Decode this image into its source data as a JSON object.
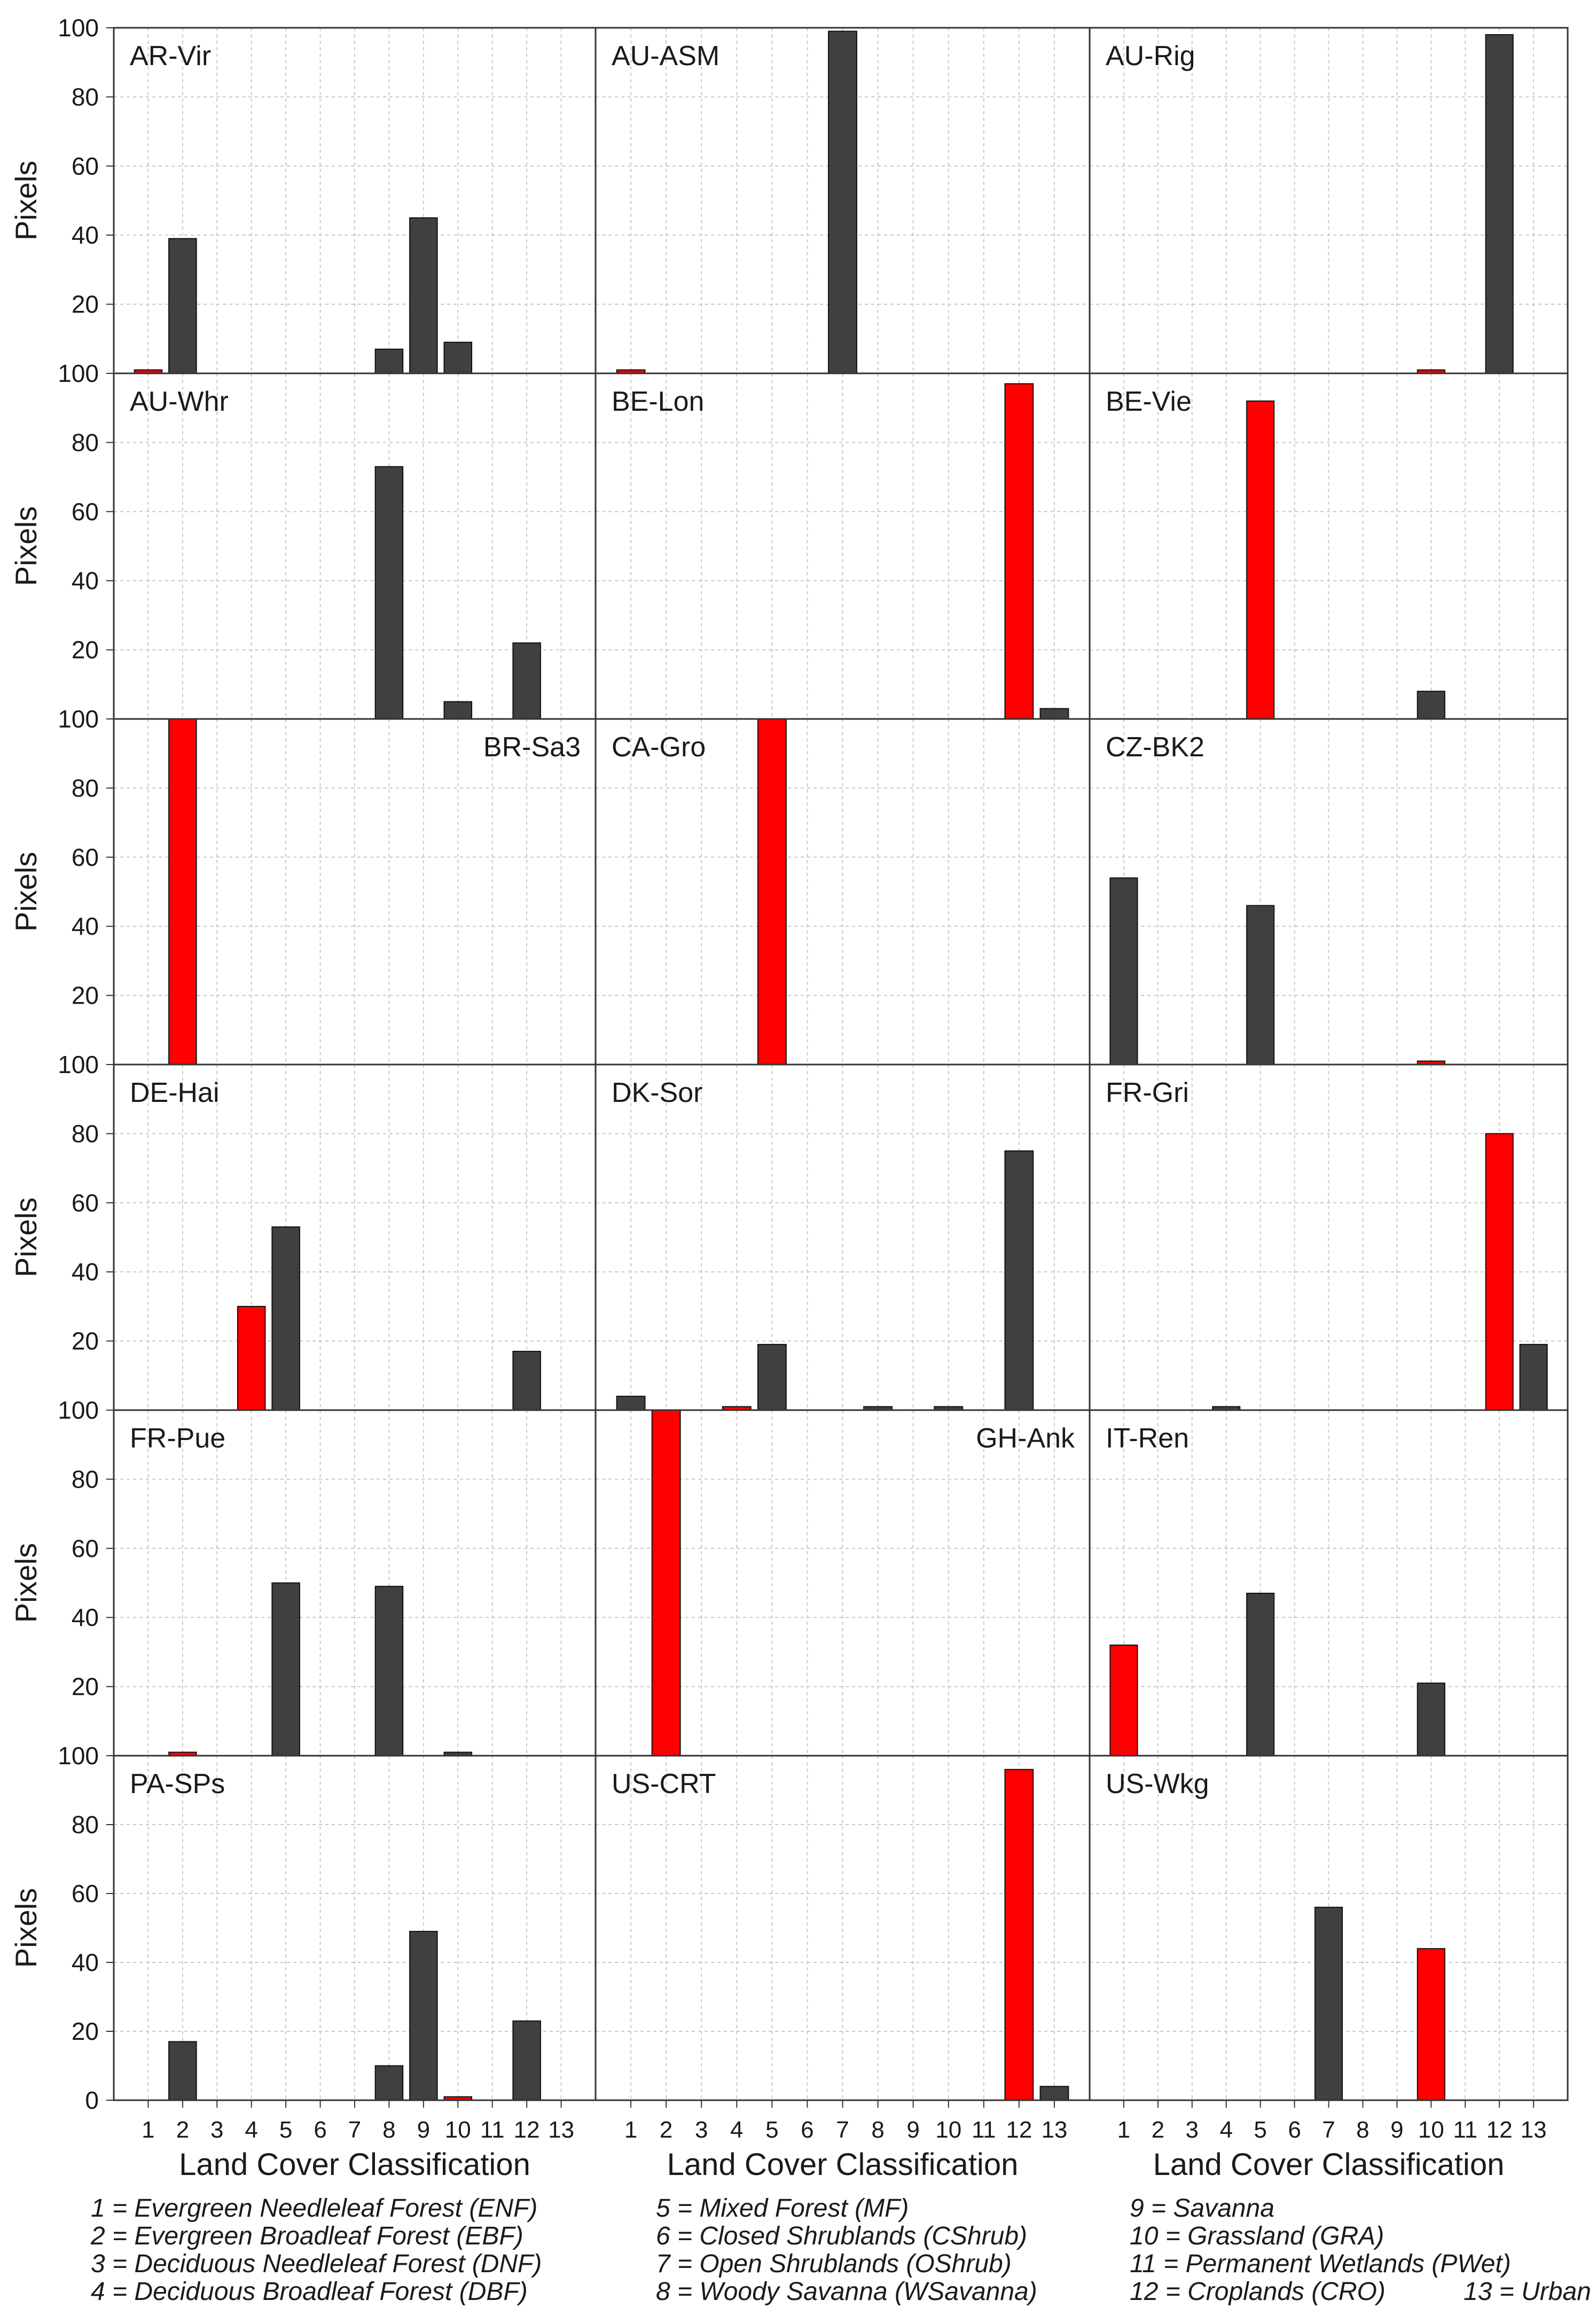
{
  "chart_data": {
    "type": "bar",
    "categories": [
      "1",
      "2",
      "3",
      "4",
      "5",
      "6",
      "7",
      "8",
      "9",
      "10",
      "11",
      "12",
      "13"
    ],
    "ylim": [
      0,
      100
    ],
    "yticks": [
      0,
      20,
      40,
      60,
      80,
      100
    ],
    "ylabel": "Pixels",
    "xlabel": "Land Cover Classification",
    "colors": {
      "dominant": "#ff0000",
      "other": "#404040",
      "grid": "#c8c8c8",
      "frame": "#333333"
    },
    "panels": [
      {
        "site": "AR-Vir",
        "label_pos": "left",
        "values": [
          1,
          39,
          0,
          0,
          0,
          0,
          0,
          7,
          45,
          9,
          0,
          0,
          0
        ],
        "highlight": [
          1
        ]
      },
      {
        "site": "AU-ASM",
        "label_pos": "left",
        "values": [
          1,
          0,
          0,
          0,
          0,
          0,
          99,
          0,
          0,
          0,
          0,
          0,
          0
        ],
        "highlight": [
          1
        ]
      },
      {
        "site": "AU-Rig",
        "label_pos": "left",
        "values": [
          0,
          0,
          0,
          0,
          0,
          0,
          0,
          0,
          0,
          1,
          0,
          98,
          0
        ],
        "highlight": [
          10
        ]
      },
      {
        "site": "AU-Whr",
        "label_pos": "left",
        "values": [
          0,
          0,
          0,
          0,
          0,
          0,
          0,
          73,
          0,
          5,
          0,
          22,
          0
        ],
        "highlight": []
      },
      {
        "site": "BE-Lon",
        "label_pos": "left",
        "values": [
          0,
          0,
          0,
          0,
          0,
          0,
          0,
          0,
          0,
          0,
          0,
          97,
          3
        ],
        "highlight": [
          12
        ]
      },
      {
        "site": "BE-Vie",
        "label_pos": "left",
        "values": [
          0,
          0,
          0,
          0,
          92,
          0,
          0,
          0,
          0,
          8,
          0,
          0,
          0
        ],
        "highlight": [
          5
        ]
      },
      {
        "site": "BR-Sa3",
        "label_pos": "right",
        "values": [
          0,
          101,
          0,
          0,
          0,
          0,
          0,
          0,
          0,
          0,
          0,
          0,
          0
        ],
        "highlight": [
          2
        ]
      },
      {
        "site": "CA-Gro",
        "label_pos": "left",
        "values": [
          0,
          0,
          0,
          0,
          100,
          0,
          0,
          0,
          0,
          0,
          0,
          0,
          0
        ],
        "highlight": [
          5
        ]
      },
      {
        "site": "CZ-BK2",
        "label_pos": "left",
        "values": [
          54,
          0,
          0,
          0,
          46,
          0,
          0,
          0,
          0,
          1,
          0,
          0,
          0
        ],
        "highlight": [
          10
        ]
      },
      {
        "site": "DE-Hai",
        "label_pos": "left",
        "values": [
          0,
          0,
          0,
          30,
          53,
          0,
          0,
          0,
          0,
          0,
          0,
          17,
          0
        ],
        "highlight": [
          4
        ]
      },
      {
        "site": "DK-Sor",
        "label_pos": "left",
        "values": [
          4,
          0,
          0,
          1,
          19,
          0,
          0,
          1,
          0,
          1,
          0,
          75,
          0
        ],
        "highlight": [
          4
        ]
      },
      {
        "site": "FR-Gri",
        "label_pos": "left",
        "values": [
          0,
          0,
          0,
          1,
          0,
          0,
          0,
          0,
          0,
          0,
          0,
          80,
          19
        ],
        "highlight": [
          12
        ]
      },
      {
        "site": "FR-Pue",
        "label_pos": "left",
        "values": [
          0,
          1,
          0,
          0,
          50,
          0,
          0,
          49,
          0,
          1,
          0,
          0,
          0
        ],
        "highlight": [
          2
        ]
      },
      {
        "site": "GH-Ank",
        "label_pos": "right",
        "values": [
          0,
          100,
          0,
          0,
          0,
          0,
          0,
          0,
          0,
          0,
          0,
          0,
          0
        ],
        "highlight": [
          2
        ]
      },
      {
        "site": "IT-Ren",
        "label_pos": "left",
        "values": [
          32,
          0,
          0,
          0,
          47,
          0,
          0,
          0,
          0,
          21,
          0,
          0,
          0
        ],
        "highlight": [
          1
        ]
      },
      {
        "site": "PA-SPs",
        "label_pos": "left",
        "values": [
          0,
          17,
          0,
          0,
          0,
          0,
          0,
          10,
          49,
          1,
          0,
          23,
          0
        ],
        "highlight": [
          10
        ]
      },
      {
        "site": "US-CRT",
        "label_pos": "left",
        "values": [
          0,
          0,
          0,
          0,
          0,
          0,
          0,
          0,
          0,
          0,
          0,
          96,
          4
        ],
        "highlight": [
          12
        ]
      },
      {
        "site": "US-Wkg",
        "label_pos": "left",
        "values": [
          0,
          0,
          0,
          0,
          0,
          0,
          56,
          0,
          0,
          44,
          0,
          0,
          0
        ],
        "highlight": [
          10
        ]
      }
    ],
    "legend": [
      [
        "1 = Evergreen Needleleaf Forest (ENF)",
        "2 = Evergreen Broadleaf Forest (EBF)",
        "3 = Deciduous Needleleaf Forest (DNF)",
        "4 = Deciduous Broadleaf Forest (DBF)"
      ],
      [
        "5 = Mixed Forest (MF)",
        "6 = Closed Shrublands (CShrub)",
        "7 = Open Shrublands (OShrub)",
        "8 = Woody Savanna (WSavanna)"
      ],
      [
        "9 = Savanna",
        "10 = Grassland (GRA)",
        "11 = Permanent Wetlands (PWet)",
        "12 = Croplands (CRO)"
      ]
    ],
    "legend_extra": "13 = Urban"
  }
}
